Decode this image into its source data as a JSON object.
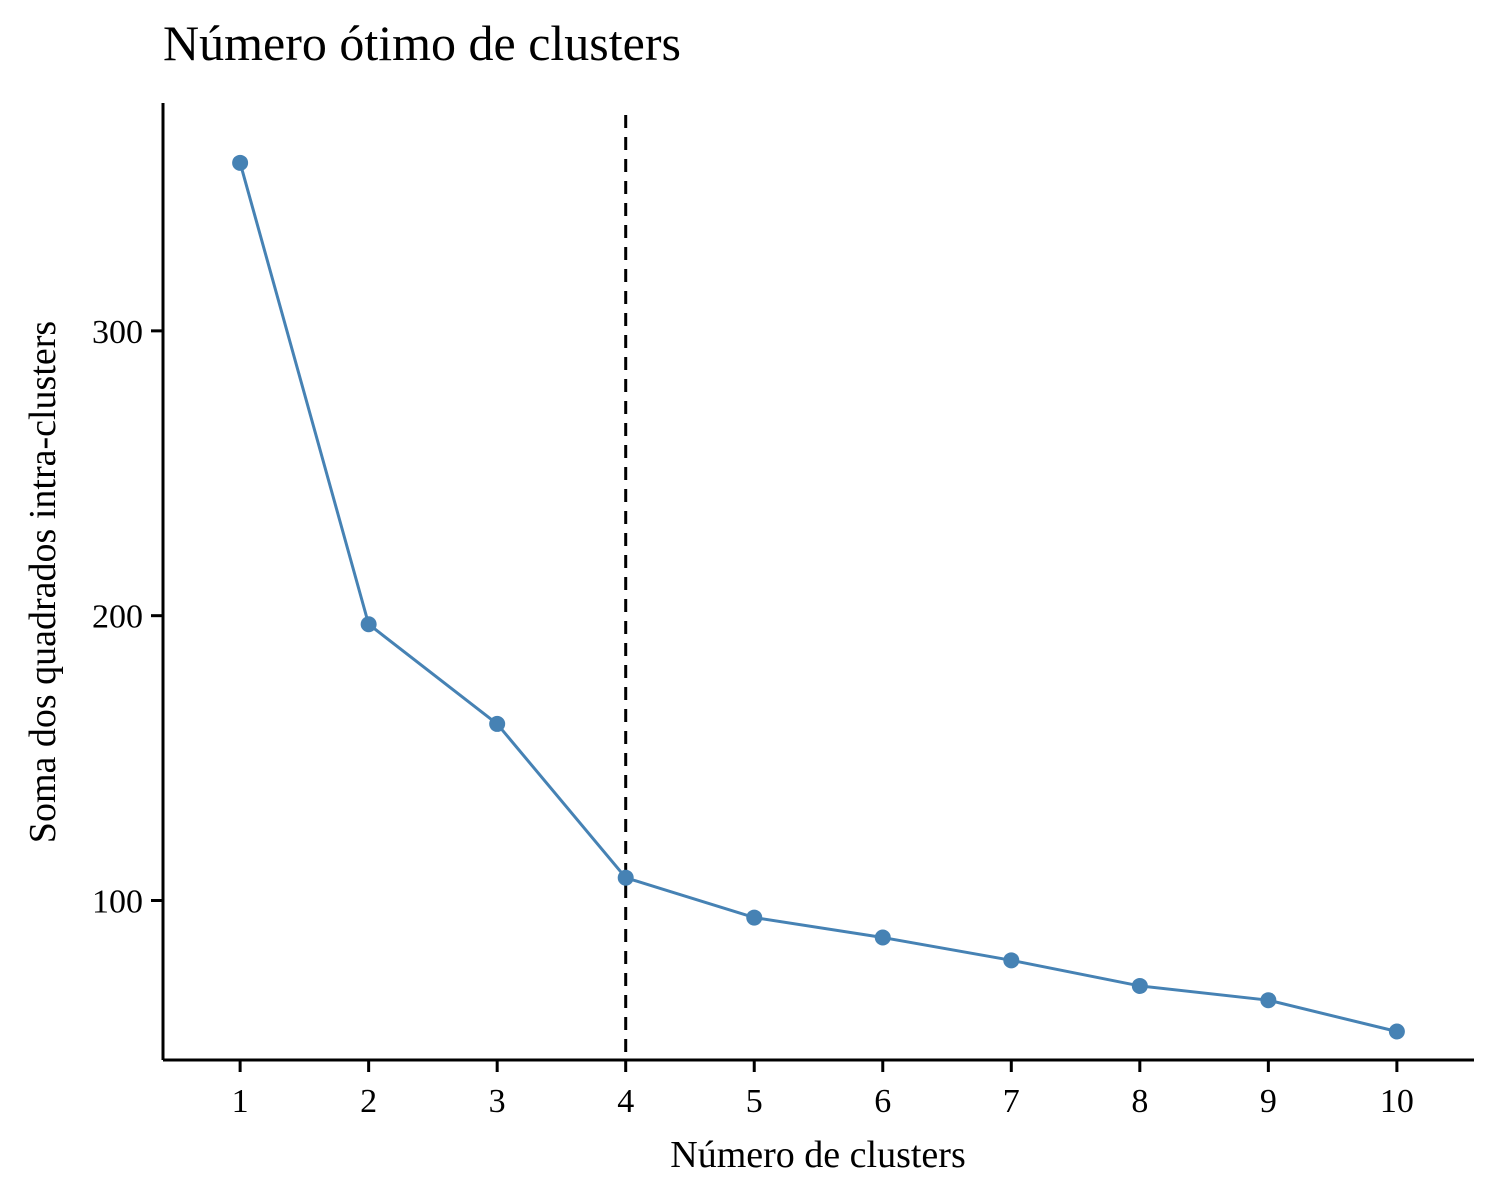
{
  "chart_data": {
    "type": "line",
    "title": "Número ótimo de clusters",
    "xlabel": "Número de clusters",
    "ylabel": "Soma dos quadrados intra-clusters",
    "x": [
      1,
      2,
      3,
      4,
      5,
      6,
      7,
      8,
      9,
      10
    ],
    "series": [
      {
        "values": [
          359,
          197,
          162,
          108,
          94,
          87,
          79,
          70,
          65,
          54
        ],
        "color": "#4682B4"
      }
    ],
    "xlim": [
      0.4,
      10.6
    ],
    "ylim": [
      44,
      380
    ],
    "yticks": [
      100,
      200,
      300
    ],
    "xticks": [
      1,
      2,
      3,
      4,
      5,
      6,
      7,
      8,
      9,
      10
    ],
    "reference_line": {
      "x": 4,
      "style": "dashed",
      "color": "#000000"
    },
    "grid": false,
    "legend": "none"
  }
}
